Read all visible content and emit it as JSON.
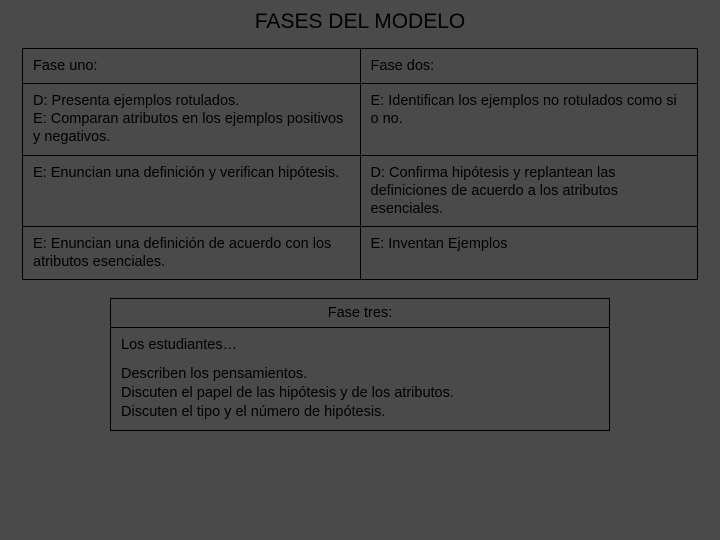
{
  "title": "FASES DEL MODELO",
  "table": {
    "r1c1": "Fase uno:",
    "r1c2": "Fase dos:",
    "r2c1": "D:  Presenta ejemplos rotulados.\nE: Comparan atributos en los ejemplos positivos y negativos.",
    "r2c2": "E: Identifican los ejemplos no rotulados como si o no.",
    "r3c1": "E: Enuncian una definición y verifican hipótesis.",
    "r3c2": "D: Confirma hipótesis y replantean las definiciones de acuerdo a los atributos esenciales.",
    "r4c1": "E: Enuncian una definición de acuerdo con los atributos esenciales.",
    "r4c2": "E: Inventan Ejemplos"
  },
  "phase3": {
    "header": "Fase tres:",
    "lead": "Los estudiantes…",
    "l1": "Describen los pensamientos.",
    "l2": "Discuten el papel de las hipótesis y de los atributos.",
    "l3": "Discuten el tipo y el número de hipótesis."
  }
}
